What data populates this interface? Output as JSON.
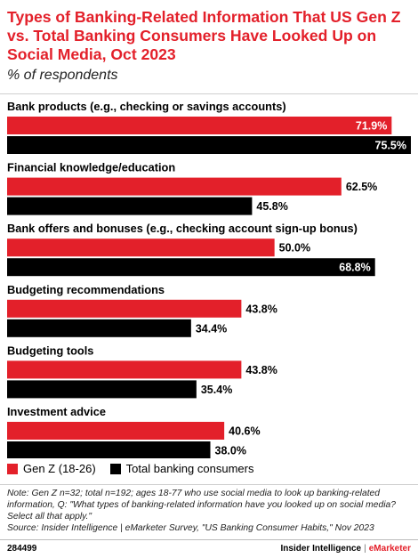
{
  "header": {
    "title": "Types of Banking-Related Information That US Gen Z vs. Total Banking Consumers Have Looked Up on Social Media, Oct 2023",
    "subtitle": "% of respondents"
  },
  "colors": {
    "genz": "#e3202a",
    "total": "#000000"
  },
  "chart_data": {
    "type": "bar",
    "orientation": "horizontal",
    "categories": [
      "Bank products (e.g., checking or savings accounts)",
      "Financial knowledge/education",
      "Bank offers and bonuses (e.g., checking account sign-up bonus)",
      "Budgeting recommendations",
      "Budgeting tools",
      "Investment advice"
    ],
    "series": [
      {
        "name": "Gen Z (18-26)",
        "values": [
          71.9,
          62.5,
          50.0,
          43.8,
          43.8,
          40.6
        ],
        "labels": [
          "71.9%",
          "62.5%",
          "50.0%",
          "43.8%",
          "43.8%",
          "40.6%"
        ]
      },
      {
        "name": "Total banking consumers",
        "values": [
          75.5,
          45.8,
          68.8,
          34.4,
          35.4,
          38.0
        ],
        "labels": [
          "75.5%",
          "45.8%",
          "68.8%",
          "34.4%",
          "35.4%",
          "38.0%"
        ]
      }
    ],
    "xlim": [
      0,
      75.5
    ],
    "grid": false,
    "legend": "bottom-left"
  },
  "footer": {
    "note": "Note: Gen Z n=32; total n=192; ages 18-77 who use social media to look up banking-related information, Q: \"What types of banking-related information have you looked up on social media? Select all that apply.\"",
    "source": "Source: Insider Intelligence | eMarketer Survey, \"US Banking Consumer Habits,\" Nov 2023",
    "id": "284499",
    "brand_left": "Insider Intelligence",
    "brand_sep": "|",
    "brand_right": "eMarketer"
  }
}
